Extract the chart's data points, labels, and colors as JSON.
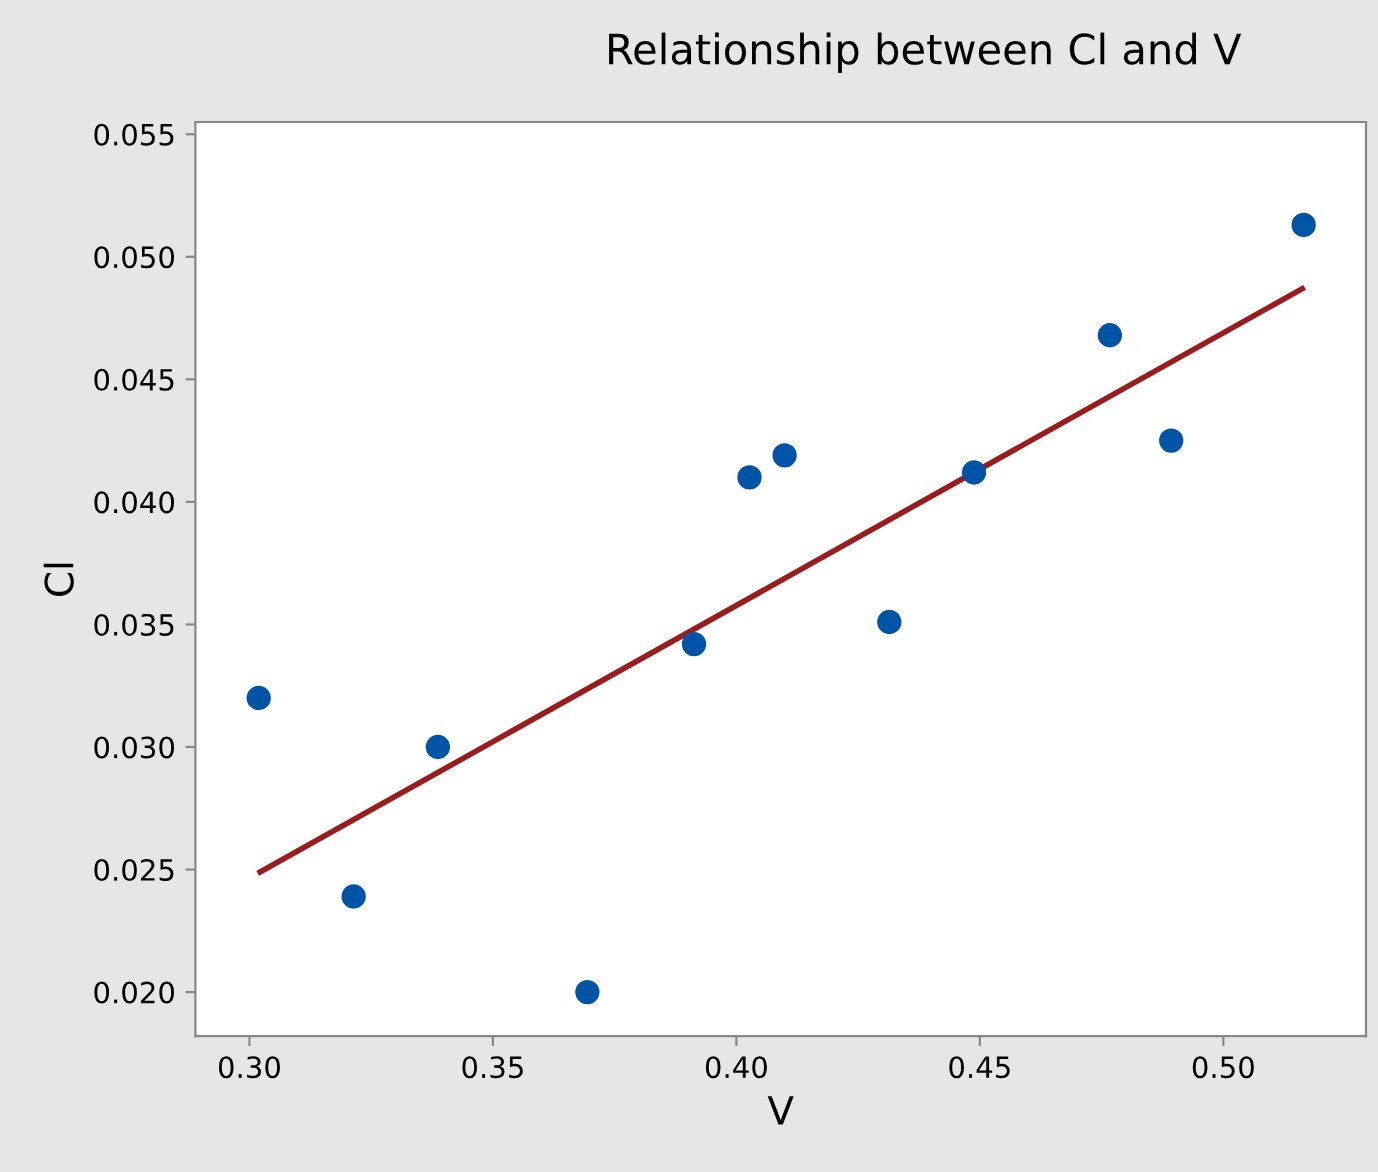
{
  "chart_data": {
    "type": "scatter",
    "title": "Relationship between Cl and V",
    "xlabel": "V",
    "ylabel": "Cl",
    "xlim": [
      0.2889,
      0.5293
    ],
    "ylim": [
      0.0182,
      0.0555
    ],
    "xticks": [
      {
        "value": 0.3,
        "label": "0.30"
      },
      {
        "value": 0.35,
        "label": "0.35"
      },
      {
        "value": 0.4,
        "label": "0.40"
      },
      {
        "value": 0.45,
        "label": "0.45"
      },
      {
        "value": 0.5,
        "label": "0.50"
      }
    ],
    "yticks": [
      {
        "value": 0.02,
        "label": "0.020"
      },
      {
        "value": 0.025,
        "label": "0.025"
      },
      {
        "value": 0.03,
        "label": "0.030"
      },
      {
        "value": 0.035,
        "label": "0.035"
      },
      {
        "value": 0.04,
        "label": "0.040"
      },
      {
        "value": 0.045,
        "label": "0.045"
      },
      {
        "value": 0.05,
        "label": "0.050"
      },
      {
        "value": 0.055,
        "label": "0.055"
      }
    ],
    "grid": false,
    "series": [
      {
        "marker": "circle",
        "color": "#0054a6",
        "x": [
          0.3019,
          0.3214,
          0.3387,
          0.3694,
          0.3913,
          0.4027,
          0.4099,
          0.4314,
          0.4488,
          0.4767,
          0.4893,
          0.5165
        ],
        "values": [
          0.032,
          0.0239,
          0.03,
          0.02,
          0.0342,
          0.041,
          0.0419,
          0.0351,
          0.0412,
          0.0468,
          0.0425,
          0.0513
        ]
      },
      {
        "type": "line",
        "color": "#9b1c1c",
        "x": [
          0.3022,
          0.5162
        ],
        "values": [
          0.0249,
          0.0487
        ]
      }
    ]
  }
}
